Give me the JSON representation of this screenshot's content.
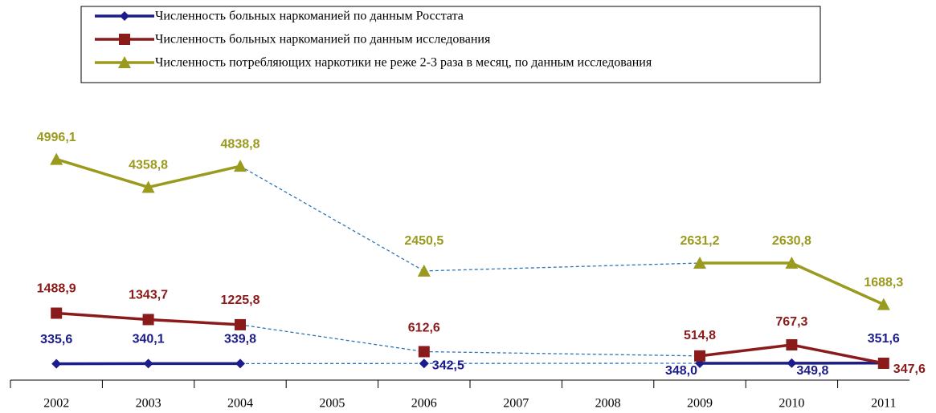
{
  "chart_data": {
    "type": "line",
    "categories": [
      "2002",
      "2003",
      "2004",
      "2005",
      "2006",
      "2007",
      "2008",
      "2009",
      "2010",
      "2011"
    ],
    "series": [
      {
        "name": "Численность больных наркоманией по данным Росстата",
        "color": "#1c1c8a",
        "marker": "diamond",
        "values": [
          335.6,
          340.1,
          339.8,
          null,
          342.5,
          null,
          null,
          348.0,
          349.8,
          351.6
        ],
        "value_labels": [
          "335,6",
          "340,1",
          "339,8",
          null,
          "342,5",
          null,
          null,
          "348,0",
          "349,8",
          "351,6"
        ]
      },
      {
        "name": "Численность больных наркоманией по данным исследования",
        "color": "#8b1a1a",
        "marker": "square",
        "values": [
          1488.9,
          1343.7,
          1225.8,
          null,
          612.6,
          null,
          null,
          514.8,
          767.3,
          347.6
        ],
        "value_labels": [
          "1488,9",
          "1343,7",
          "1225,8",
          null,
          "612,6",
          null,
          null,
          "514,8",
          "767,3",
          "347,6"
        ]
      },
      {
        "name": "Численность потребляющих наркотики не реже 2-3 раза в месяц, по данным исследования",
        "color": "#9a9a1e",
        "marker": "triangle",
        "values": [
          4996.1,
          4358.8,
          4838.8,
          null,
          2450.5,
          null,
          null,
          2631.2,
          2630.8,
          1688.3
        ],
        "value_labels": [
          "4996,1",
          "4358,8",
          "4838,8",
          null,
          "2450,5",
          null,
          null,
          "2631,2",
          "2630,8",
          "1688,3"
        ]
      }
    ],
    "ylim": [
      0,
      5500
    ],
    "gap_connector_color": "#2e75b6",
    "legend": "top"
  }
}
